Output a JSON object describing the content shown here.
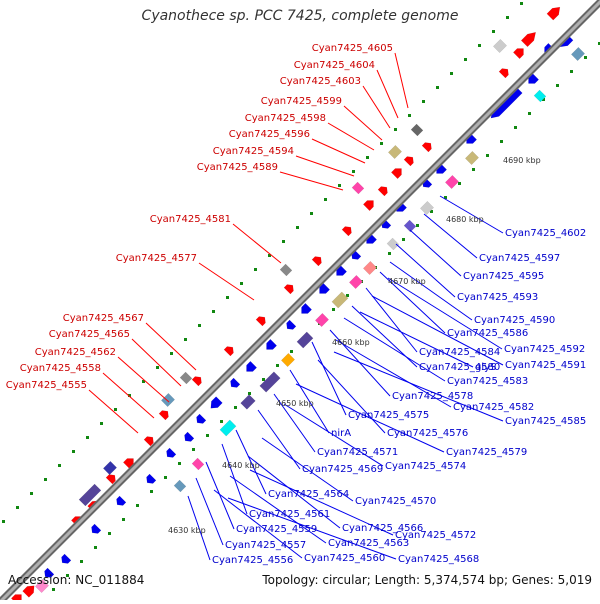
{
  "title": "Cyanothece sp. PCC 7425, complete genome",
  "accession_text": "Accession: NC_011884",
  "summary_text": "Topology: circular; Length: 5,374,574 bp; Genes: 5,019",
  "colors": {
    "forward_label": "#cc0000",
    "reverse_label": "#0000cc",
    "forward_feature": "#ff0000",
    "reverse_feature": "#0000ee",
    "backbone": "#888888",
    "tick_dot": "#118811"
  },
  "scale_labels": [
    "4690 kbp",
    "4680 kbp",
    "4670 kbp",
    "4660 kbp",
    "4650 kbp",
    "4640 kbp",
    "4630 kbp"
  ],
  "forward_labels": [
    "Cyan7425_4605",
    "Cyan7425_4604",
    "Cyan7425_4603",
    "Cyan7425_4599",
    "Cyan7425_4598",
    "Cyan7425_4596",
    "Cyan7425_4594",
    "Cyan7425_4589",
    "Cyan7425_4581",
    "Cyan7425_4577",
    "Cyan7425_4567",
    "Cyan7425_4565",
    "Cyan7425_4562",
    "Cyan7425_4558",
    "Cyan7425_4555"
  ],
  "reverse_labels": [
    "Cyan7425_4602",
    "Cyan7425_4597",
    "Cyan7425_4595",
    "Cyan7425_4593",
    "Cyan7425_4590",
    "Cyan7425_4586",
    "Cyan7425_4592",
    "Cyan7425_4584",
    "Cyan7425_4591",
    "Cyan7425_4580",
    "glyS",
    "Cyan7425_4583",
    "Cyan7425_4578",
    "Cyan7425_4582",
    "Cyan7425_4585",
    "Cyan7425_4575",
    "Cyan7425_4576",
    "nirA",
    "Cyan7425_4579",
    "Cyan7425_4571",
    "Cyan7425_4574",
    "Cyan7425_4569",
    "Cyan7425_4564",
    "Cyan7425_4570",
    "Cyan7425_4561",
    "Cyan7425_4566",
    "Cyan7425_4572",
    "Cyan7425_4559",
    "Cyan7425_4563",
    "Cyan7425_4557",
    "Cyan7425_4560",
    "Cyan7425_4568",
    "Cyan7425_4556"
  ]
}
